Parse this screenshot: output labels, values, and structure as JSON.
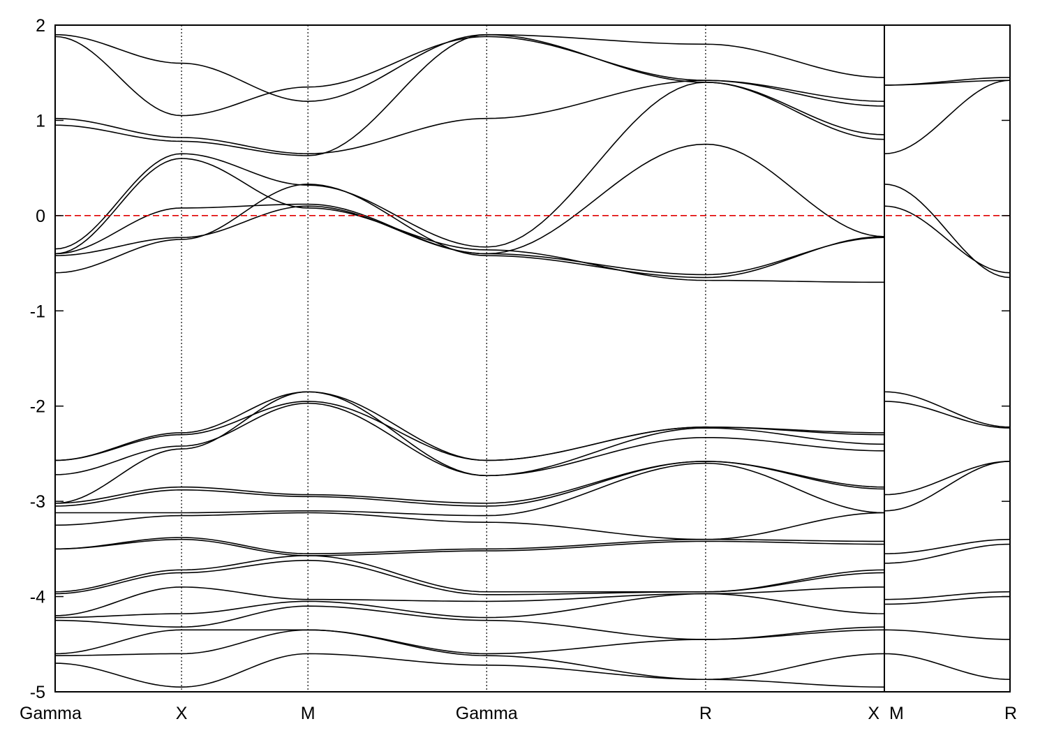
{
  "chart_data": {
    "type": "line",
    "title": "",
    "xlabel": "",
    "ylabel": "",
    "ylim": [
      -5,
      2
    ],
    "yticks": [
      -5,
      -4,
      -3,
      -2,
      -1,
      0,
      1,
      2
    ],
    "ytick_labels": [
      "-5",
      "-4",
      "-3",
      "-2",
      "-1",
      "0",
      "1",
      "2"
    ],
    "grid": false,
    "fermi_level": 0,
    "colors": {
      "bands": "#000000",
      "fermi": "#e00000",
      "kpoint_lines": "#000000"
    },
    "segments": [
      {
        "path": [
          "Gamma",
          "X",
          "M",
          "Gamma",
          "R",
          "X"
        ],
        "knots": [
          0,
          1,
          2,
          3.4142,
          5.1463,
          6.5605
        ]
      },
      {
        "path": [
          "M",
          "R"
        ],
        "knots": [
          0,
          1
        ]
      }
    ],
    "kpoint_labels": [
      {
        "label": "Gamma",
        "segment": 0,
        "index": 0
      },
      {
        "label": "X",
        "segment": 0,
        "index": 1
      },
      {
        "label": "M",
        "segment": 0,
        "index": 2
      },
      {
        "label": "Gamma",
        "segment": 0,
        "index": 3
      },
      {
        "label": "R",
        "segment": 0,
        "index": 4
      },
      {
        "label": "X",
        "segment": 0,
        "index": 5
      },
      {
        "label": "M",
        "segment": 1,
        "index": 0
      },
      {
        "label": "R",
        "segment": 1,
        "index": 1
      }
    ],
    "bands_segment1": [
      [
        1.9,
        1.6,
        1.2,
        1.9,
        1.8,
        1.45
      ],
      [
        1.88,
        1.05,
        1.35,
        1.88,
        1.42,
        1.15
      ],
      [
        1.02,
        0.82,
        0.65,
        1.02,
        1.42,
        1.2
      ],
      [
        0.95,
        0.78,
        0.63,
        1.9,
        1.4,
        0.85
      ],
      [
        -0.35,
        0.65,
        0.32,
        -0.33,
        1.4,
        0.8
      ],
      [
        -0.4,
        0.08,
        0.12,
        -0.4,
        0.75,
        -0.22
      ],
      [
        -0.42,
        -0.23,
        0.1,
        -0.4,
        -0.62,
        -0.23
      ],
      [
        -0.6,
        -0.25,
        0.33,
        -0.42,
        -0.65,
        -0.22
      ],
      [
        -0.4,
        0.6,
        0.08,
        -0.36,
        -0.68,
        -0.7
      ],
      [
        -2.57,
        -2.28,
        -1.85,
        -2.57,
        -2.22,
        -2.28
      ],
      [
        -2.57,
        -2.3,
        -1.95,
        -2.57,
        -2.22,
        -2.3
      ],
      [
        -2.72,
        -2.42,
        -1.97,
        -2.73,
        -2.23,
        -2.4
      ],
      [
        -3.02,
        -2.45,
        -1.85,
        -2.73,
        -2.33,
        -2.47
      ],
      [
        -3.02,
        -2.85,
        -2.93,
        -3.02,
        -2.58,
        -2.85
      ],
      [
        -3.05,
        -2.88,
        -2.95,
        -3.05,
        -2.58,
        -2.87
      ],
      [
        -3.12,
        -3.12,
        -3.1,
        -3.15,
        -2.6,
        -3.12
      ],
      [
        -3.25,
        -3.15,
        -3.12,
        -3.22,
        -3.4,
        -3.12
      ],
      [
        -3.5,
        -3.38,
        -3.55,
        -3.5,
        -3.4,
        -3.42
      ],
      [
        -3.5,
        -3.4,
        -3.57,
        -3.52,
        -3.42,
        -3.45
      ],
      [
        -3.95,
        -3.72,
        -3.57,
        -3.95,
        -3.95,
        -3.72
      ],
      [
        -3.97,
        -3.75,
        -3.62,
        -3.98,
        -3.95,
        -3.75
      ],
      [
        -4.2,
        -3.9,
        -4.03,
        -4.05,
        -3.97,
        -3.9
      ],
      [
        -4.22,
        -4.18,
        -4.05,
        -4.22,
        -3.97,
        -4.18
      ],
      [
        -4.25,
        -4.32,
        -4.1,
        -4.25,
        -4.45,
        -4.32
      ],
      [
        -4.6,
        -4.35,
        -4.35,
        -4.6,
        -4.45,
        -4.35
      ],
      [
        -4.62,
        -4.6,
        -4.35,
        -4.62,
        -4.87,
        -4.6
      ],
      [
        -4.7,
        -4.95,
        -4.6,
        -4.72,
        -4.87,
        -4.95
      ]
    ],
    "bands_segment2": [
      [
        1.37,
        1.45
      ],
      [
        1.37,
        1.42
      ],
      [
        0.65,
        1.42
      ],
      [
        0.33,
        -0.65
      ],
      [
        0.1,
        -0.6
      ],
      [
        -1.85,
        -2.22
      ],
      [
        -1.95,
        -2.23
      ],
      [
        -2.93,
        -2.58
      ],
      [
        -3.1,
        -2.58
      ],
      [
        -3.55,
        -3.4
      ],
      [
        -3.65,
        -3.45
      ],
      [
        -4.03,
        -3.95
      ],
      [
        -4.08,
        -4.0
      ],
      [
        -4.35,
        -4.45
      ],
      [
        -4.6,
        -4.87
      ]
    ]
  }
}
